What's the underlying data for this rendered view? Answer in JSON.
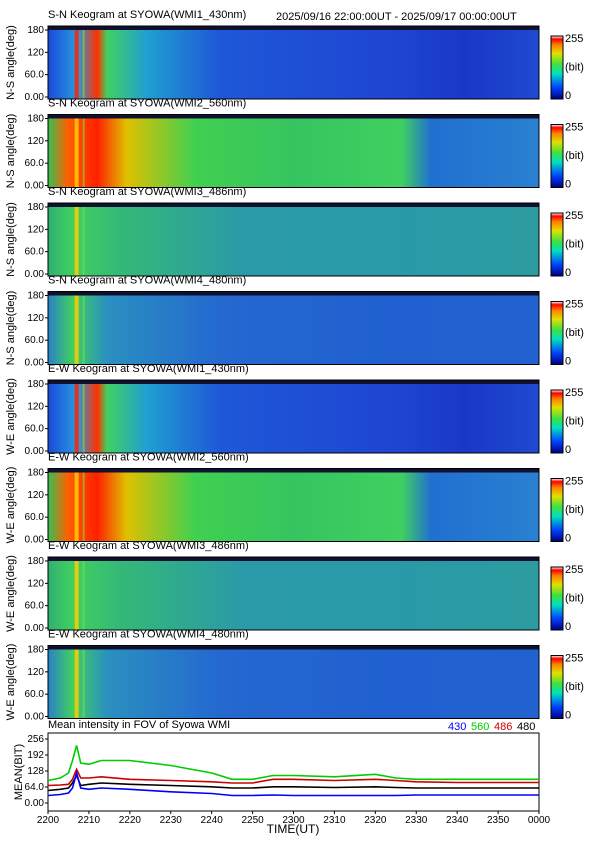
{
  "header": {
    "time_range": "2025/09/16 22:00:00UT - 2025/09/17 00:00:00UT"
  },
  "panels": [
    {
      "title": "S-N Keogram at SYOWA(WMI1_430nm)",
      "ylabel": "N-S angle(deg)",
      "family": "blue"
    },
    {
      "title": "S-N Keogram at SYOWA(WMI2_560nm)",
      "ylabel": "N-S angle(deg)",
      "family": "green"
    },
    {
      "title": "S-N Keogram at SYOWA(WMI3_486nm)",
      "ylabel": "N-S angle(deg)",
      "family": "flat"
    },
    {
      "title": "S-N Keogram at SYOWA(WMI4_480nm)",
      "ylabel": "N-S angle(deg)",
      "family": "flat2"
    },
    {
      "title": "E-W Keogram at SYOWA(WMI1_430nm)",
      "ylabel": "W-E angle(deg)",
      "family": "blue"
    },
    {
      "title": "E-W Keogram at SYOWA(WMI2_560nm)",
      "ylabel": "W-E angle(deg)",
      "family": "green"
    },
    {
      "title": "E-W Keogram at SYOWA(WMI3_486nm)",
      "ylabel": "W-E angle(deg)",
      "family": "flat"
    },
    {
      "title": "E-W Keogram at SYOWA(WMI4_480nm)",
      "ylabel": "W-E angle(deg)",
      "family": "flat2"
    }
  ],
  "keogram_yticks": [
    "180",
    "120",
    "60.0",
    "0.00"
  ],
  "colorbar": {
    "max_label": "255",
    "unit_label": "(bit)",
    "min_label": "0"
  },
  "colors": {
    "series_430": "#0000ff",
    "series_560": "#00cc00",
    "series_486": "#cc0000",
    "series_480": "#000000",
    "keogram_low": "#1a3fd6",
    "keogram_mid": "#33cc55",
    "keogram_high": "#ff2a00"
  },
  "chart_data": {
    "type": "line",
    "title": "Mean intensity in FOV of Syowa WMI",
    "xlabel": "TIME(UT)",
    "ylabel": "MEAN(BIT)",
    "xlim": [
      2200,
      2400
    ],
    "ylim": [
      0,
      256
    ],
    "x_tick_labels": [
      "2200",
      "2210",
      "2220",
      "2230",
      "2240",
      "2250",
      "2300",
      "2310",
      "2320",
      "2330",
      "2340",
      "2350",
      "0000"
    ],
    "y_tick_labels": [
      "256",
      "192",
      "128",
      "64.0",
      "0.00"
    ],
    "legend": [
      "430",
      "560",
      "486",
      "480"
    ],
    "legend_placement": "top-right",
    "x_minutes": [
      0,
      3,
      5,
      6,
      7,
      8,
      10,
      13,
      20,
      30,
      40,
      45,
      50,
      55,
      60,
      70,
      80,
      85,
      90,
      100,
      110,
      115,
      120
    ],
    "series": [
      {
        "name": "430",
        "values": [
          30,
          34,
          40,
          60,
          120,
          60,
          55,
          60,
          55,
          45,
          38,
          30,
          30,
          32,
          30,
          30,
          30,
          30,
          32,
          32,
          32,
          32,
          32
        ]
      },
      {
        "name": "560",
        "values": [
          90,
          100,
          120,
          170,
          230,
          160,
          155,
          170,
          170,
          150,
          120,
          95,
          95,
          110,
          110,
          105,
          115,
          100,
          95,
          95,
          95,
          95,
          95
        ]
      },
      {
        "name": "486",
        "values": [
          70,
          72,
          75,
          95,
          135,
          100,
          100,
          105,
          95,
          90,
          85,
          80,
          80,
          95,
          95,
          90,
          95,
          90,
          85,
          82,
          82,
          82,
          82
        ]
      },
      {
        "name": "480",
        "values": [
          50,
          55,
          60,
          80,
          110,
          70,
          75,
          80,
          75,
          70,
          65,
          60,
          60,
          65,
          65,
          62,
          65,
          62,
          60,
          60,
          60,
          60,
          60
        ]
      }
    ]
  }
}
